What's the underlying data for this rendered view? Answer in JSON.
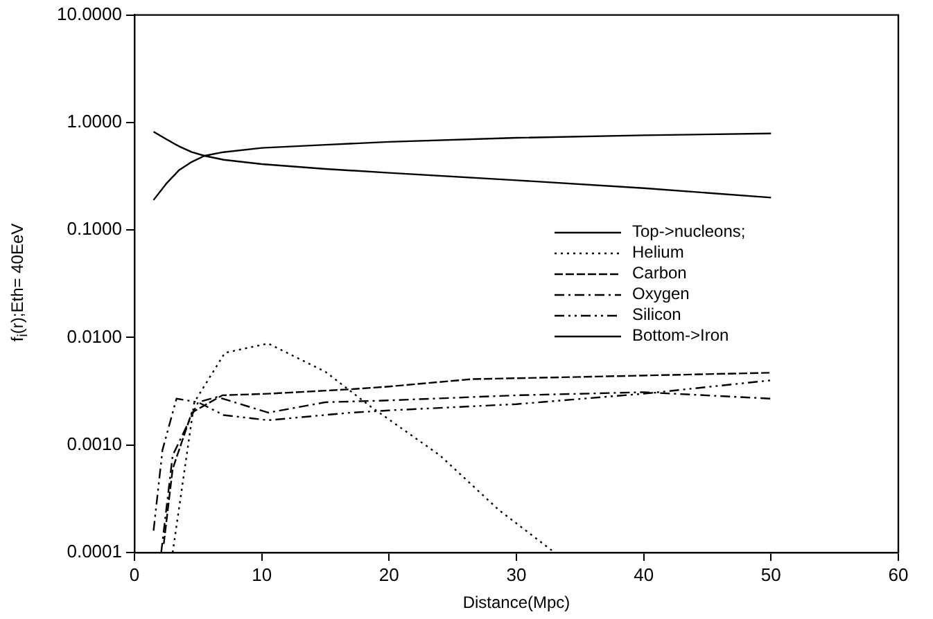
{
  "chart_data": {
    "type": "line",
    "xlabel": "Distance(Mpc)",
    "ylabel": "f$_{i}$(r);Eth= 40EeV",
    "log": "y",
    "grid": false,
    "legend": "right",
    "marker": "none",
    "xlim": [
      0,
      60
    ],
    "xticks": [
      0,
      10,
      20,
      30,
      40,
      50,
      60
    ],
    "ylim": [
      0.0001,
      10
    ],
    "yticks": [
      {
        "value": 0.0001,
        "label": "0.0001"
      },
      {
        "value": 0.001,
        "label": "0.0010"
      },
      {
        "value": 0.01,
        "label": "0.0100"
      },
      {
        "value": 0.1,
        "label": "0.1000"
      },
      {
        "value": 1,
        "label": "1.0000"
      },
      {
        "value": 10,
        "label": "10.0000"
      }
    ],
    "series": [
      {
        "name": "Top->nucleons;",
        "color": "#000000",
        "line_style": "solid",
        "x": [
          1.5,
          2.5,
          3.5,
          4.5,
          5.5,
          7,
          10,
          15,
          20,
          30,
          40,
          50
        ],
        "values": [
          0.19,
          0.27,
          0.36,
          0.43,
          0.49,
          0.53,
          0.58,
          0.62,
          0.66,
          0.72,
          0.76,
          0.79
        ]
      },
      {
        "name": "Helium",
        "color": "#000000",
        "line_style": "dotted",
        "x": [
          3,
          4.7,
          7.1,
          10.5,
          15,
          18.5,
          24,
          28.6,
          33
        ],
        "values": [
          0.0001,
          0.0025,
          0.0072,
          0.0088,
          0.0048,
          0.0023,
          0.0008,
          0.00025,
          0.0001
        ]
      },
      {
        "name": "Carbon",
        "color": "#000000",
        "line_style": "dashed",
        "x": [
          2.3,
          3,
          4.5,
          6.9,
          10.5,
          17,
          20,
          26.5,
          35,
          50
        ],
        "values": [
          0.00012,
          0.0006,
          0.002,
          0.0029,
          0.003,
          0.0033,
          0.0035,
          0.0041,
          0.0043,
          0.0047
        ]
      },
      {
        "name": "Oxygen",
        "color": "#000000",
        "line_style": "dashdot",
        "x": [
          2.1,
          3,
          5,
          6.5,
          10.5,
          15,
          20,
          30,
          40,
          50
        ],
        "values": [
          0.0001,
          0.0008,
          0.0025,
          0.0028,
          0.002,
          0.0025,
          0.0026,
          0.0029,
          0.0031,
          0.0027
        ]
      },
      {
        "name": "Silicon",
        "color": "#000000",
        "line_style": "dashdotdot",
        "x": [
          1.5,
          2.2,
          3.3,
          5,
          7,
          10.5,
          17,
          20,
          30,
          40,
          50
        ],
        "values": [
          0.00016,
          0.0009,
          0.0027,
          0.0025,
          0.0019,
          0.0017,
          0.002,
          0.0021,
          0.0024,
          0.003,
          0.004
        ]
      },
      {
        "name": "Bottom->Iron",
        "color": "#000000",
        "line_style": "solid",
        "x": [
          1.5,
          2.5,
          3.5,
          4.5,
          5.5,
          7,
          10,
          15,
          20,
          30,
          40,
          50
        ],
        "values": [
          0.82,
          0.7,
          0.6,
          0.53,
          0.49,
          0.45,
          0.41,
          0.37,
          0.34,
          0.29,
          0.245,
          0.2
        ]
      }
    ]
  }
}
